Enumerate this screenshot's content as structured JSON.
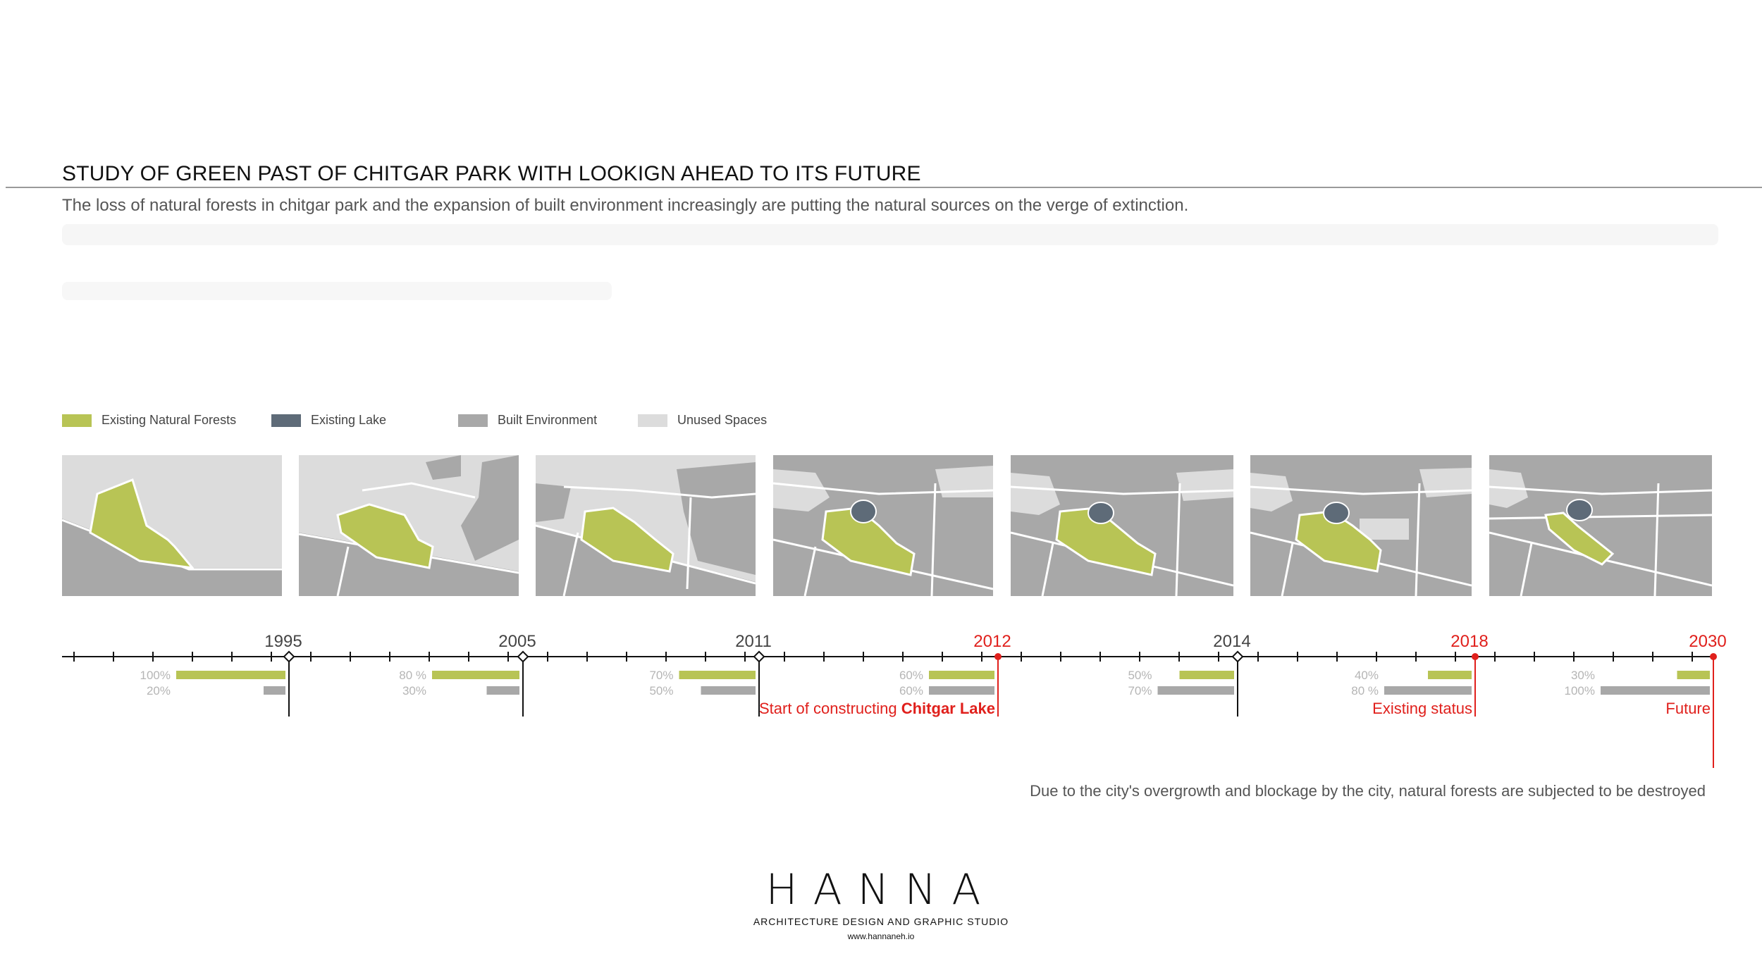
{
  "header": {
    "title": "STUDY OF GREEN PAST OF CHITGAR PARK WITH LOOKIGN AHEAD TO ITS FUTURE",
    "subtitle": "The loss of natural forests in chitgar park and the expansion of built environment increasingly are putting the natural sources on the verge of extinction."
  },
  "legend": [
    {
      "label": "Existing Natural Forests",
      "color": "#b8c455"
    },
    {
      "label": "Existing Lake",
      "color": "#5e6b78"
    },
    {
      "label": "Built Environment",
      "color": "#a8a8a8"
    },
    {
      "label": "Unused Spaces",
      "color": "#dcdcdc"
    }
  ],
  "colors": {
    "forest": "#b8c455",
    "lake": "#5e6b78",
    "built": "#a8a8a8",
    "unused": "#dcdcdc",
    "highlight": "#e0201c",
    "axis": "#111111",
    "pct_text": "#b5b5b5"
  },
  "timeline": {
    "events": [
      {
        "year": "1995",
        "forest_pct": "100%",
        "built_pct": "20%",
        "forest": 100,
        "built": 20,
        "highlight": false
      },
      {
        "year": "2005",
        "forest_pct": "80 %",
        "built_pct": "30%",
        "forest": 80,
        "built": 30,
        "highlight": false
      },
      {
        "year": "2011",
        "forest_pct": "70%",
        "built_pct": "50%",
        "forest": 70,
        "built": 50,
        "highlight": false
      },
      {
        "year": "2012",
        "forest_pct": "60%",
        "built_pct": "60%",
        "forest": 60,
        "built": 60,
        "highlight": true,
        "caption_prefix": "Start of constructing ",
        "caption_bold": "Chitgar Lake"
      },
      {
        "year": "2014",
        "forest_pct": "50%",
        "built_pct": "70%",
        "forest": 50,
        "built": 70,
        "highlight": false
      },
      {
        "year": "2018",
        "forest_pct": "40%",
        "built_pct": "80 %",
        "forest": 40,
        "built": 80,
        "highlight": true,
        "caption_prefix": "Existing status",
        "caption_bold": ""
      },
      {
        "year": "2030",
        "forest_pct": "30%",
        "built_pct": "100%",
        "forest": 30,
        "built": 100,
        "highlight": true,
        "caption_prefix": "Future",
        "caption_bold": ""
      }
    ]
  },
  "note": "Due to the city's overgrowth and blockage by the city, natural forests are subjected to be destroyed",
  "logo": {
    "word": "HANNA",
    "tagline": "ARCHITECTURE DESIGN AND GRAPHIC STUDIO",
    "url": "www.hannaneh.io"
  }
}
